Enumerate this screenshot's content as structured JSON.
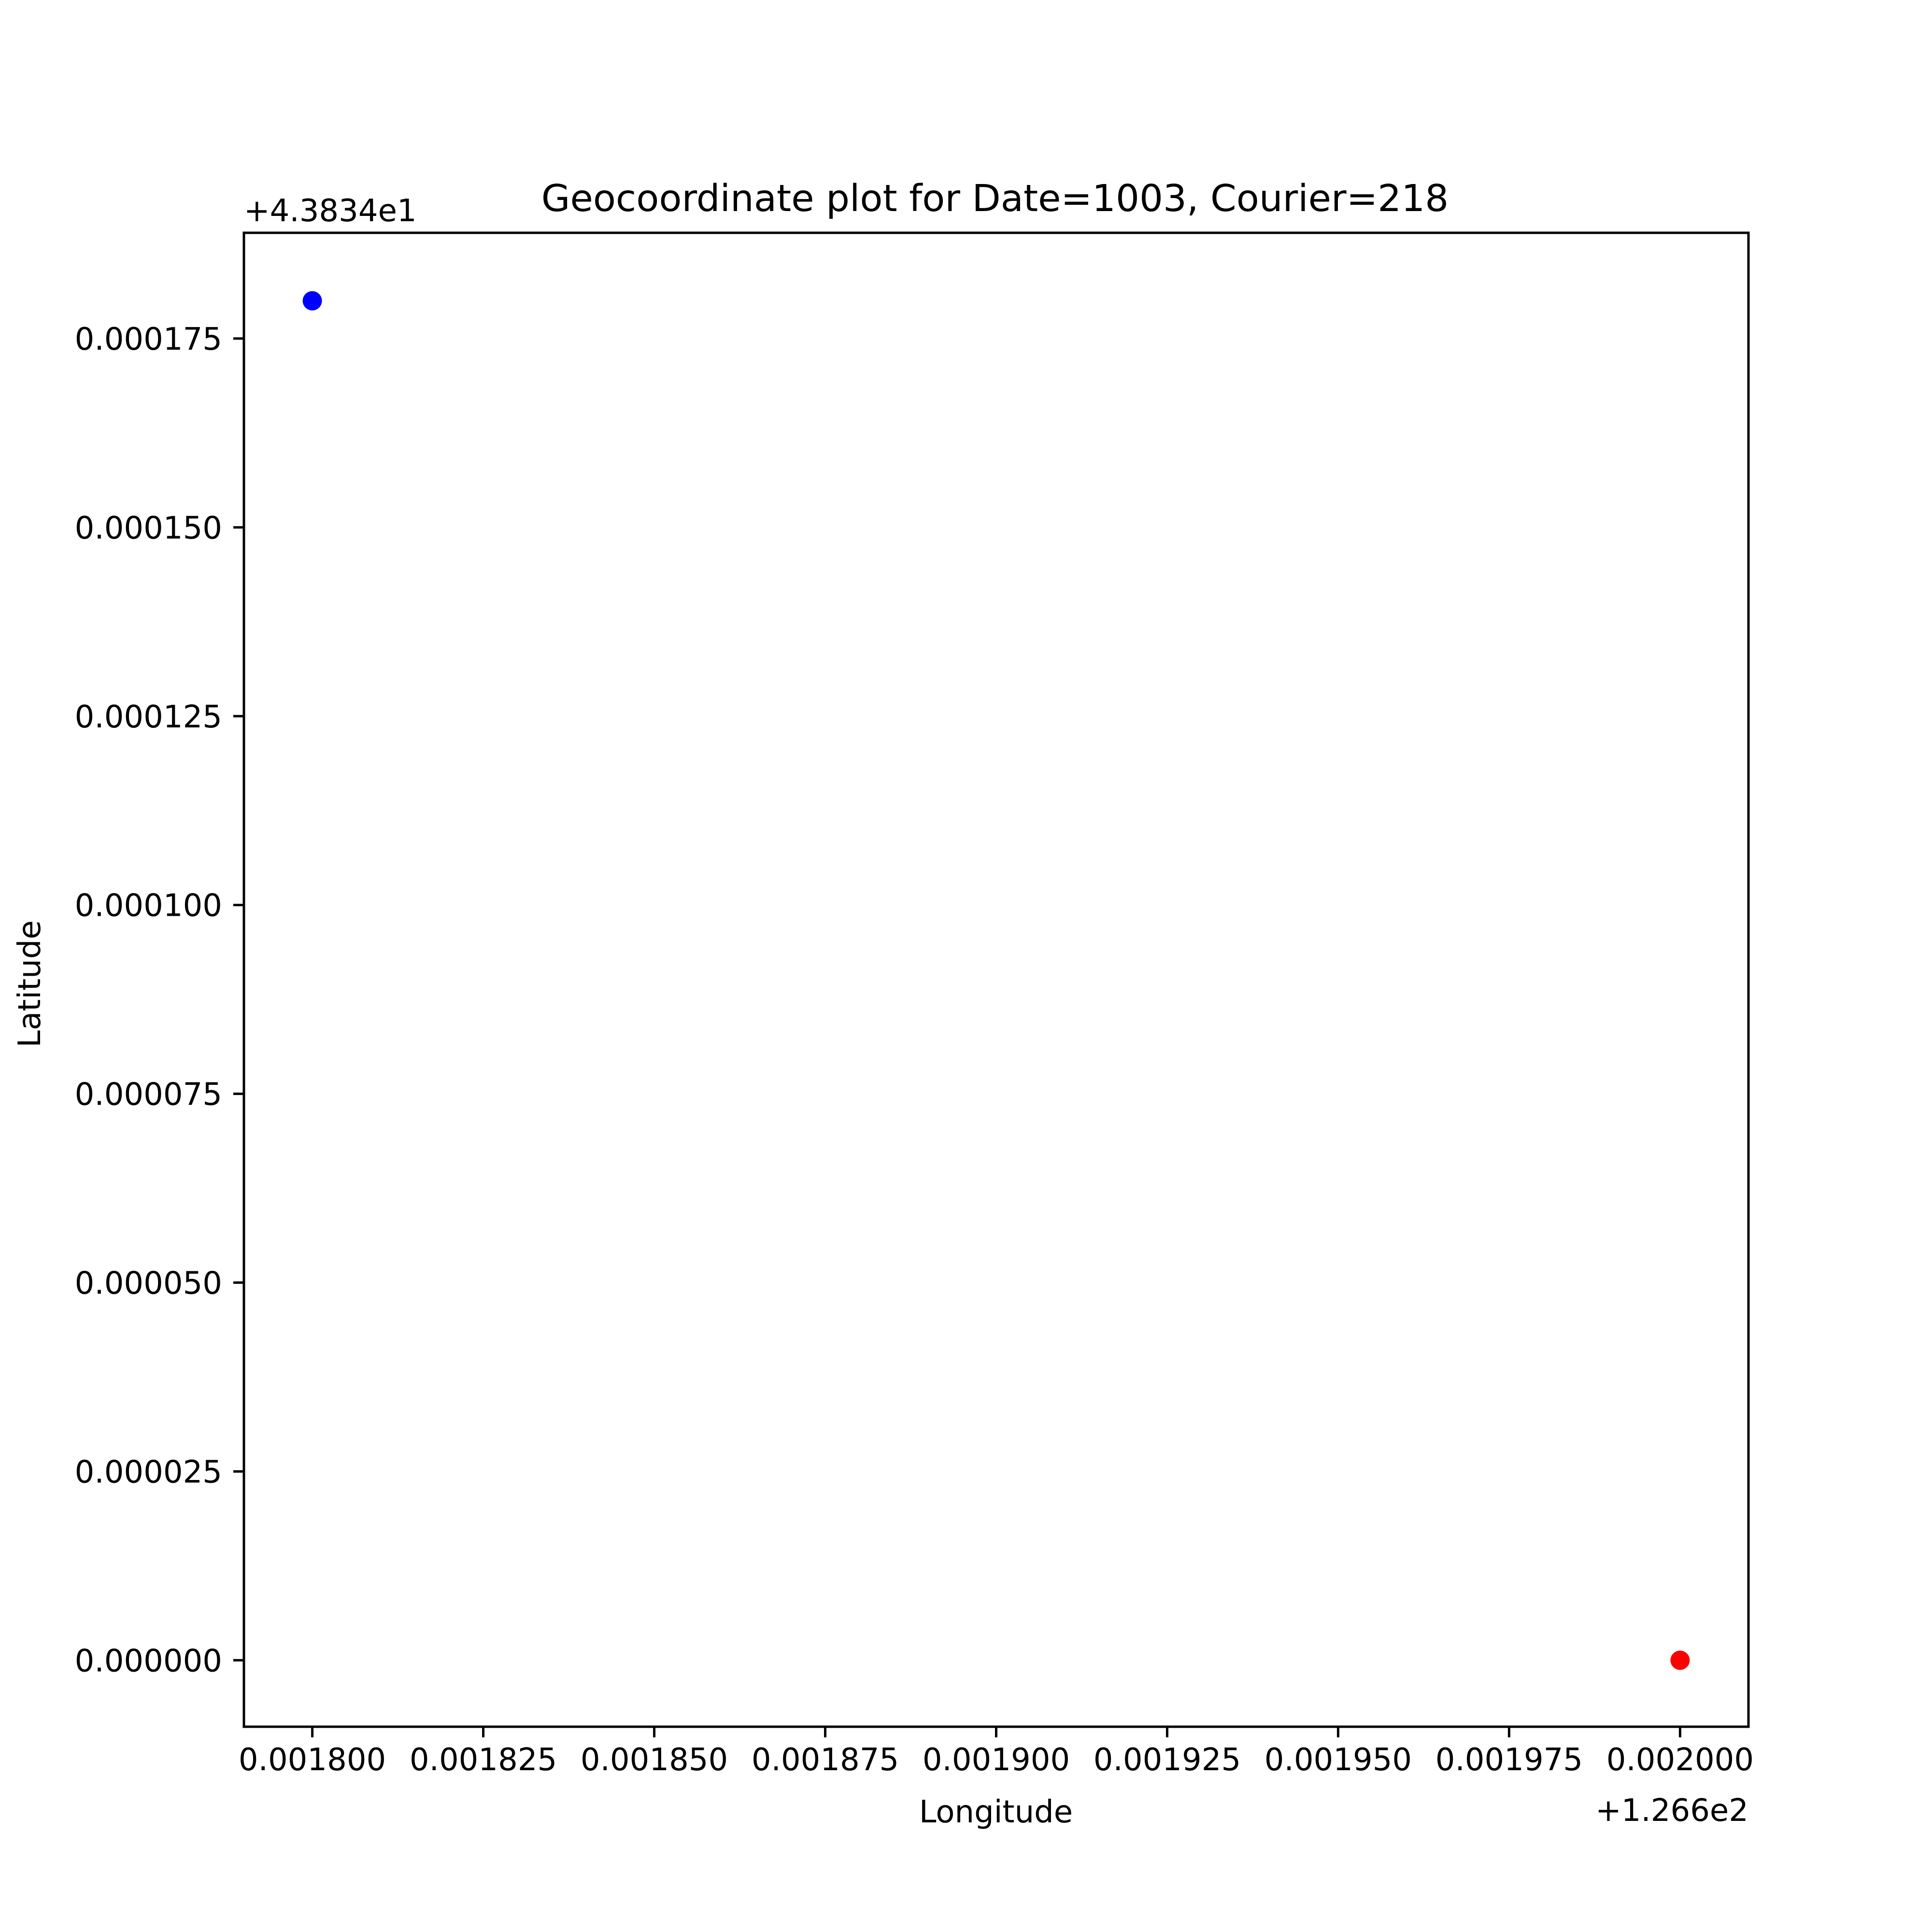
{
  "chart_data": {
    "type": "scatter",
    "title": "Geocoordinate plot for Date=1003, Courier=218",
    "xlabel": "Longitude",
    "ylabel": "Latitude",
    "x_offset_label": "+1.266e2",
    "y_offset_label": "+4.3834e1",
    "xlim": [
      0.00179,
      0.00201
    ],
    "ylim": [
      -8.8e-06,
      0.000189
    ],
    "x_ticks": [
      0.0018,
      0.001825,
      0.00185,
      0.001875,
      0.0019,
      0.001925,
      0.00195,
      0.001975,
      0.002
    ],
    "x_tick_labels": [
      "0.001800",
      "0.001825",
      "0.001850",
      "0.001875",
      "0.001900",
      "0.001925",
      "0.001950",
      "0.001975",
      "0.002000"
    ],
    "y_ticks": [
      0,
      2.5e-05,
      5e-05,
      7.5e-05,
      0.0001,
      0.000125,
      0.00015,
      0.000175
    ],
    "y_tick_labels": [
      "0.000000",
      "0.000025",
      "0.000050",
      "0.000075",
      "0.000100",
      "0.000125",
      "0.000150",
      "0.000175"
    ],
    "grid": false,
    "points": [
      {
        "x": 0.0018,
        "y": 0.00018,
        "color": "#0000ff"
      },
      {
        "x": 0.002,
        "y": 0.0,
        "color": "#ff0000"
      }
    ]
  }
}
